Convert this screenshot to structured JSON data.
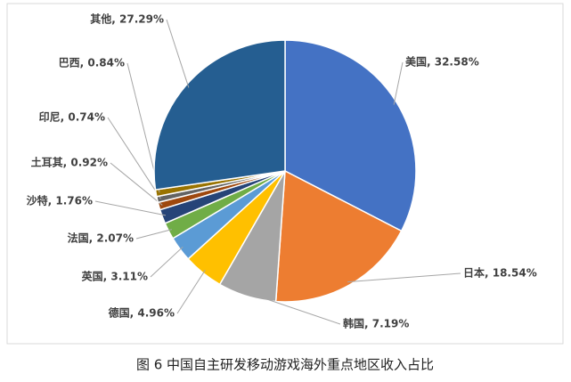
{
  "chart_data": {
    "type": "pie",
    "caption": "图 6 中国自主研发移动游戏海外重点地区收入占比",
    "values": [
      32.58,
      18.54,
      7.19,
      4.96,
      3.11,
      2.07,
      1.76,
      0.92,
      0.74,
      0.84,
      27.29
    ],
    "value_labels": [
      "美国, 32.58%",
      "日本, 18.54%",
      "韩国, 7.19%",
      "德国, 4.96%",
      "英国, 3.11%",
      "法国, 2.07%",
      "沙特, 1.76%",
      "土耳其, 0.92%",
      "印尼, 0.74%",
      "巴西, 0.84%",
      "其他, 27.29%"
    ],
    "colors": [
      "#4472c4",
      "#ed7d31",
      "#a5a5a5",
      "#ffc000",
      "#5b9bd5",
      "#70ad47",
      "#264478",
      "#9e480e",
      "#636363",
      "#997300",
      "#255e91"
    ]
  }
}
